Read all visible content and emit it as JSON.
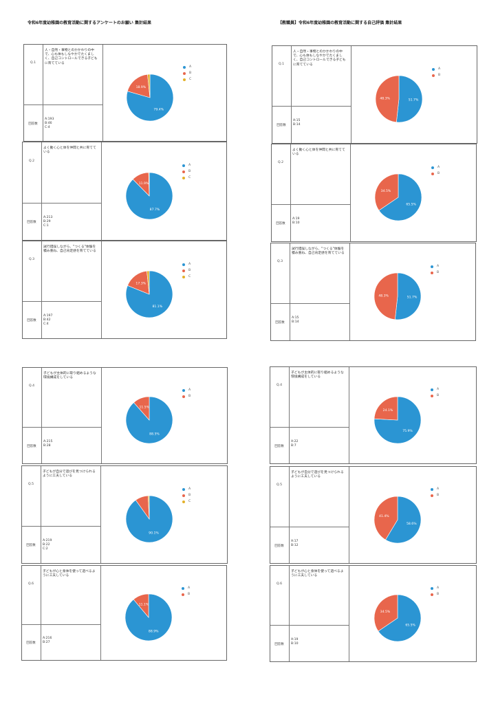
{
  "titles": {
    "left": "令和6年度幼稚園の教育活動に関するアンケートのお願い 集計結果",
    "right": "【教職員】令和6年度幼稚園の教育活動に関する自己評価 集計結果"
  },
  "labels": {
    "count": "回答数"
  },
  "colors": {
    "A": "#2b95d3",
    "B": "#e8664c",
    "C": "#e3b12a"
  },
  "cards": [
    {
      "q": "Q.1",
      "text": "人・自然・事物とのかかわりの中で、心も体もしなやかでたくましく、自己コントロールできる子どもに育てている",
      "counts": [
        "A:193",
        "B:46",
        "C:4"
      ],
      "chart": {
        "type": "pie",
        "legend": [
          "A",
          "B",
          "C"
        ],
        "values": [
          193,
          46,
          4
        ],
        "labels": [
          "79.4%",
          "18.9%",
          ""
        ]
      }
    },
    {
      "q": "Q.1",
      "text": "人・自然・事物とのかかわりの中で、心も体もしなやかでたくましく、自己コントロールできる子どもに育てている",
      "counts": [
        "A:15",
        "B:14"
      ],
      "chart": {
        "type": "pie",
        "legend": [
          "A",
          "B"
        ],
        "values": [
          15,
          14
        ],
        "labels": [
          "51.7%",
          "48.3%"
        ]
      }
    },
    {
      "q": "Q.2",
      "text": "よく動く心と体を仲間と共に育てている",
      "counts": [
        "A:213",
        "B:29",
        "C:1"
      ],
      "chart": {
        "type": "pie",
        "legend": [
          "A",
          "B",
          "C"
        ],
        "values": [
          213,
          29,
          1
        ],
        "labels": [
          "87.7%",
          "11.9%",
          ""
        ]
      }
    },
    {
      "q": "Q.2",
      "text": "よく動く心と体を仲間と共に育てている",
      "counts": [
        "A:19",
        "B:10"
      ],
      "chart": {
        "type": "pie",
        "legend": [
          "A",
          "B"
        ],
        "values": [
          19,
          10
        ],
        "labels": [
          "65.5%",
          "34.5%"
        ]
      }
    },
    {
      "q": "Q.3",
      "text": "試行錯誤しながら、\"つくる\"体験を積み重ね、自己肯定感を育てている",
      "counts": [
        "A:197",
        "B:42",
        "C:4"
      ],
      "chart": {
        "type": "pie",
        "legend": [
          "A",
          "B",
          "C"
        ],
        "values": [
          197,
          42,
          4
        ],
        "labels": [
          "81.1%",
          "17.3%",
          ""
        ]
      }
    },
    {
      "q": "Q.3",
      "text": "試行錯誤しながら、\"つくる\"体験を積み重ね、自己肯定感を育てている",
      "counts": [
        "A:15",
        "B:14"
      ],
      "chart": {
        "type": "pie",
        "legend": [
          "A",
          "B"
        ],
        "values": [
          15,
          14
        ],
        "labels": [
          "51.7%",
          "48.3%"
        ]
      }
    },
    {
      "q": "Q.4",
      "text": "子どもが主体的に取り組めるような環境構成をしている",
      "counts": [
        "A:215",
        "B:28"
      ],
      "chart": {
        "type": "pie",
        "legend": [
          "A",
          "B"
        ],
        "values": [
          215,
          28
        ],
        "labels": [
          "88.5%",
          "11.5%"
        ]
      }
    },
    {
      "q": "Q.4",
      "text": "子どもが主体的に取り組めるような環境構成をしている",
      "counts": [
        "A:22",
        "B:7"
      ],
      "chart": {
        "type": "pie",
        "legend": [
          "A",
          "B"
        ],
        "values": [
          22,
          7
        ],
        "labels": [
          "75.9%",
          "24.1%"
        ]
      }
    },
    {
      "q": "Q.5",
      "text": "子どもが自分で遊びを見つけられるように工夫している",
      "counts": [
        "A:219",
        "B:22",
        "C:2"
      ],
      "chart": {
        "type": "pie",
        "legend": [
          "A",
          "B",
          "C"
        ],
        "values": [
          219,
          22,
          2
        ],
        "labels": [
          "90.1%",
          "",
          ""
        ]
      }
    },
    {
      "q": "Q.5",
      "text": "子どもが自分で遊びを見つけられるように工夫している",
      "counts": [
        "A:17",
        "B:12"
      ],
      "chart": {
        "type": "pie",
        "legend": [
          "A",
          "B"
        ],
        "values": [
          17,
          12
        ],
        "labels": [
          "58.6%",
          "41.4%"
        ]
      }
    },
    {
      "q": "Q.6",
      "text": "子どもが心と身体を使って遊べるように工夫している",
      "counts": [
        "A:216",
        "B:27"
      ],
      "chart": {
        "type": "pie",
        "legend": [
          "A",
          "B"
        ],
        "values": [
          216,
          27
        ],
        "labels": [
          "88.9%",
          "11.1%"
        ]
      }
    },
    {
      "q": "Q.6",
      "text": "子どもが心と身体を使って遊べるように工夫している",
      "counts": [
        "A:19",
        "B:10"
      ],
      "chart": {
        "type": "pie",
        "legend": [
          "A",
          "B"
        ],
        "values": [
          19,
          10
        ],
        "labels": [
          "65.5%",
          "34.5%"
        ]
      }
    }
  ]
}
